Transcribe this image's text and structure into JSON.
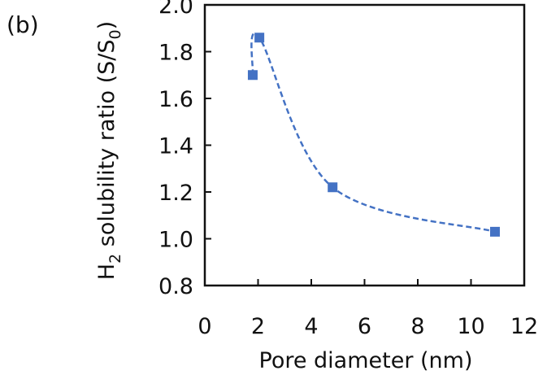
{
  "chart_data": {
    "type": "scatter",
    "panel_label": "(b)",
    "xlabel": "Pore diameter (nm)",
    "ylabel": {
      "prefix": "H",
      "prefix_sub": "2",
      "middle": " solubility ratio (S/S",
      "middle_sub": "0",
      "suffix": ")"
    },
    "xlim": [
      0,
      12
    ],
    "ylim": [
      0.8,
      2.0
    ],
    "x_ticks": [
      "0",
      "2",
      "4",
      "6",
      "8",
      "10",
      "12"
    ],
    "y_ticks": [
      "0.8",
      "1.0",
      "1.2",
      "1.4",
      "1.6",
      "1.8",
      "2.0"
    ],
    "grid": false,
    "series": [
      {
        "color": "#4472c4",
        "marker": "square",
        "line": "dashed-smooth",
        "x": [
          1.8,
          2.05,
          4.8,
          10.9
        ],
        "y": [
          1.7,
          1.86,
          1.22,
          1.03
        ]
      }
    ]
  }
}
